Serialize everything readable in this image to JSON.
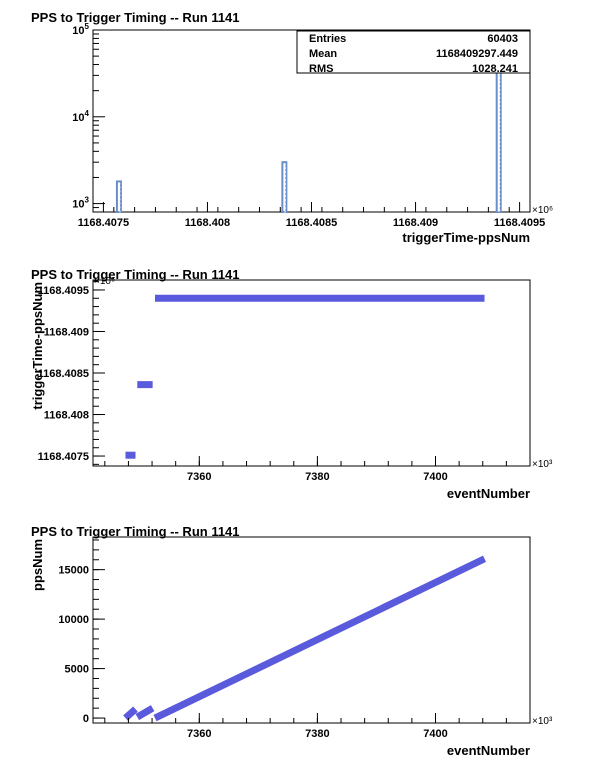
{
  "chart_data": [
    {
      "type": "histogram",
      "title": "PPS to Trigger Timing -- Run 1141",
      "xlabel": "triggerTime-ppsNum",
      "ylabel": "",
      "x_exponent_label": "×10⁶",
      "xlim": [
        1168.40745,
        1168.40955
      ],
      "ylim": [
        800,
        100000
      ],
      "y_scale": "log",
      "x_ticks": [
        {
          "value": 1168.4075,
          "label": "1168.4075"
        },
        {
          "value": 1168.408,
          "label": "1168.408"
        },
        {
          "value": 1168.4085,
          "label": "1168.4085"
        },
        {
          "value": 1168.409,
          "label": "1168.409"
        },
        {
          "value": 1168.4095,
          "label": "1168.4095"
        }
      ],
      "y_ticks": [
        {
          "value": 1000,
          "base": "10",
          "exp": "3"
        },
        {
          "value": 10000,
          "base": "10",
          "exp": "4"
        },
        {
          "value": 100000,
          "base": "10",
          "exp": "5"
        }
      ],
      "bins": [
        {
          "x0": 1168.407565,
          "x1": 1168.407575,
          "count": 1800
        },
        {
          "x0": 1168.40836,
          "x1": 1168.40837,
          "count": 3000
        },
        {
          "x0": 1168.40939,
          "x1": 1168.4094,
          "count": 45000
        }
      ],
      "color": "#6a8fc8",
      "stats": [
        {
          "label": "Entries",
          "value": "60403"
        },
        {
          "label": "Mean",
          "value": "1168409297.449"
        },
        {
          "label": "RMS",
          "value": "1028.241"
        }
      ]
    },
    {
      "type": "scatter",
      "title": "PPS to Trigger Timing -- Run 1141",
      "xlabel": "eventNumber",
      "ylabel": "triggerTime-ppsNum",
      "x_exponent_label": "×10³",
      "y_exponent_label": "×10⁶",
      "xlim": [
        7342,
        7416
      ],
      "ylim": [
        1168.40738,
        1168.40962
      ],
      "x_ticks": [
        {
          "value": 7360,
          "label": "7360"
        },
        {
          "value": 7380,
          "label": "7380"
        },
        {
          "value": 7400,
          "label": "7400"
        }
      ],
      "y_ticks": [
        {
          "value": 1168.4075,
          "label": "1168.4075"
        },
        {
          "value": 1168.408,
          "label": "1168.408"
        },
        {
          "value": 1168.4085,
          "label": "1168.4085"
        },
        {
          "value": 1168.409,
          "label": "1168.409"
        },
        {
          "value": 1168.4095,
          "label": "1168.4095"
        }
      ],
      "segments": [
        {
          "x0": 7347.5,
          "x1": 7349.2,
          "y": 1168.40751
        },
        {
          "x0": 7349.5,
          "x1": 7352.1,
          "y": 1168.40836
        },
        {
          "x0": 7352.5,
          "x1": 7408.3,
          "y": 1168.4094
        }
      ],
      "color": "#5a5adc"
    },
    {
      "type": "scatter",
      "title": "PPS to Trigger Timing -- Run 1141",
      "xlabel": "eventNumber",
      "ylabel": "ppsNum",
      "x_exponent_label": "×10³",
      "xlim": [
        7342,
        7416
      ],
      "ylim": [
        -500,
        18300
      ],
      "x_ticks": [
        {
          "value": 7360,
          "label": "7360"
        },
        {
          "value": 7380,
          "label": "7380"
        },
        {
          "value": 7400,
          "label": "7400"
        }
      ],
      "y_ticks": [
        {
          "value": 0,
          "label": "0"
        },
        {
          "value": 5000,
          "label": "5000"
        },
        {
          "value": 10000,
          "label": "10000"
        },
        {
          "value": 15000,
          "label": "15000"
        }
      ],
      "segments": [
        {
          "x0": 7347.5,
          "x1": 7349.2,
          "y0": 0,
          "y1": 900
        },
        {
          "x0": 7349.5,
          "x1": 7352.1,
          "y0": 100,
          "y1": 1000
        },
        {
          "x0": 7352.5,
          "x1": 7408.3,
          "y0": 0,
          "y1": 16100
        }
      ],
      "color": "#5a5adc"
    }
  ]
}
